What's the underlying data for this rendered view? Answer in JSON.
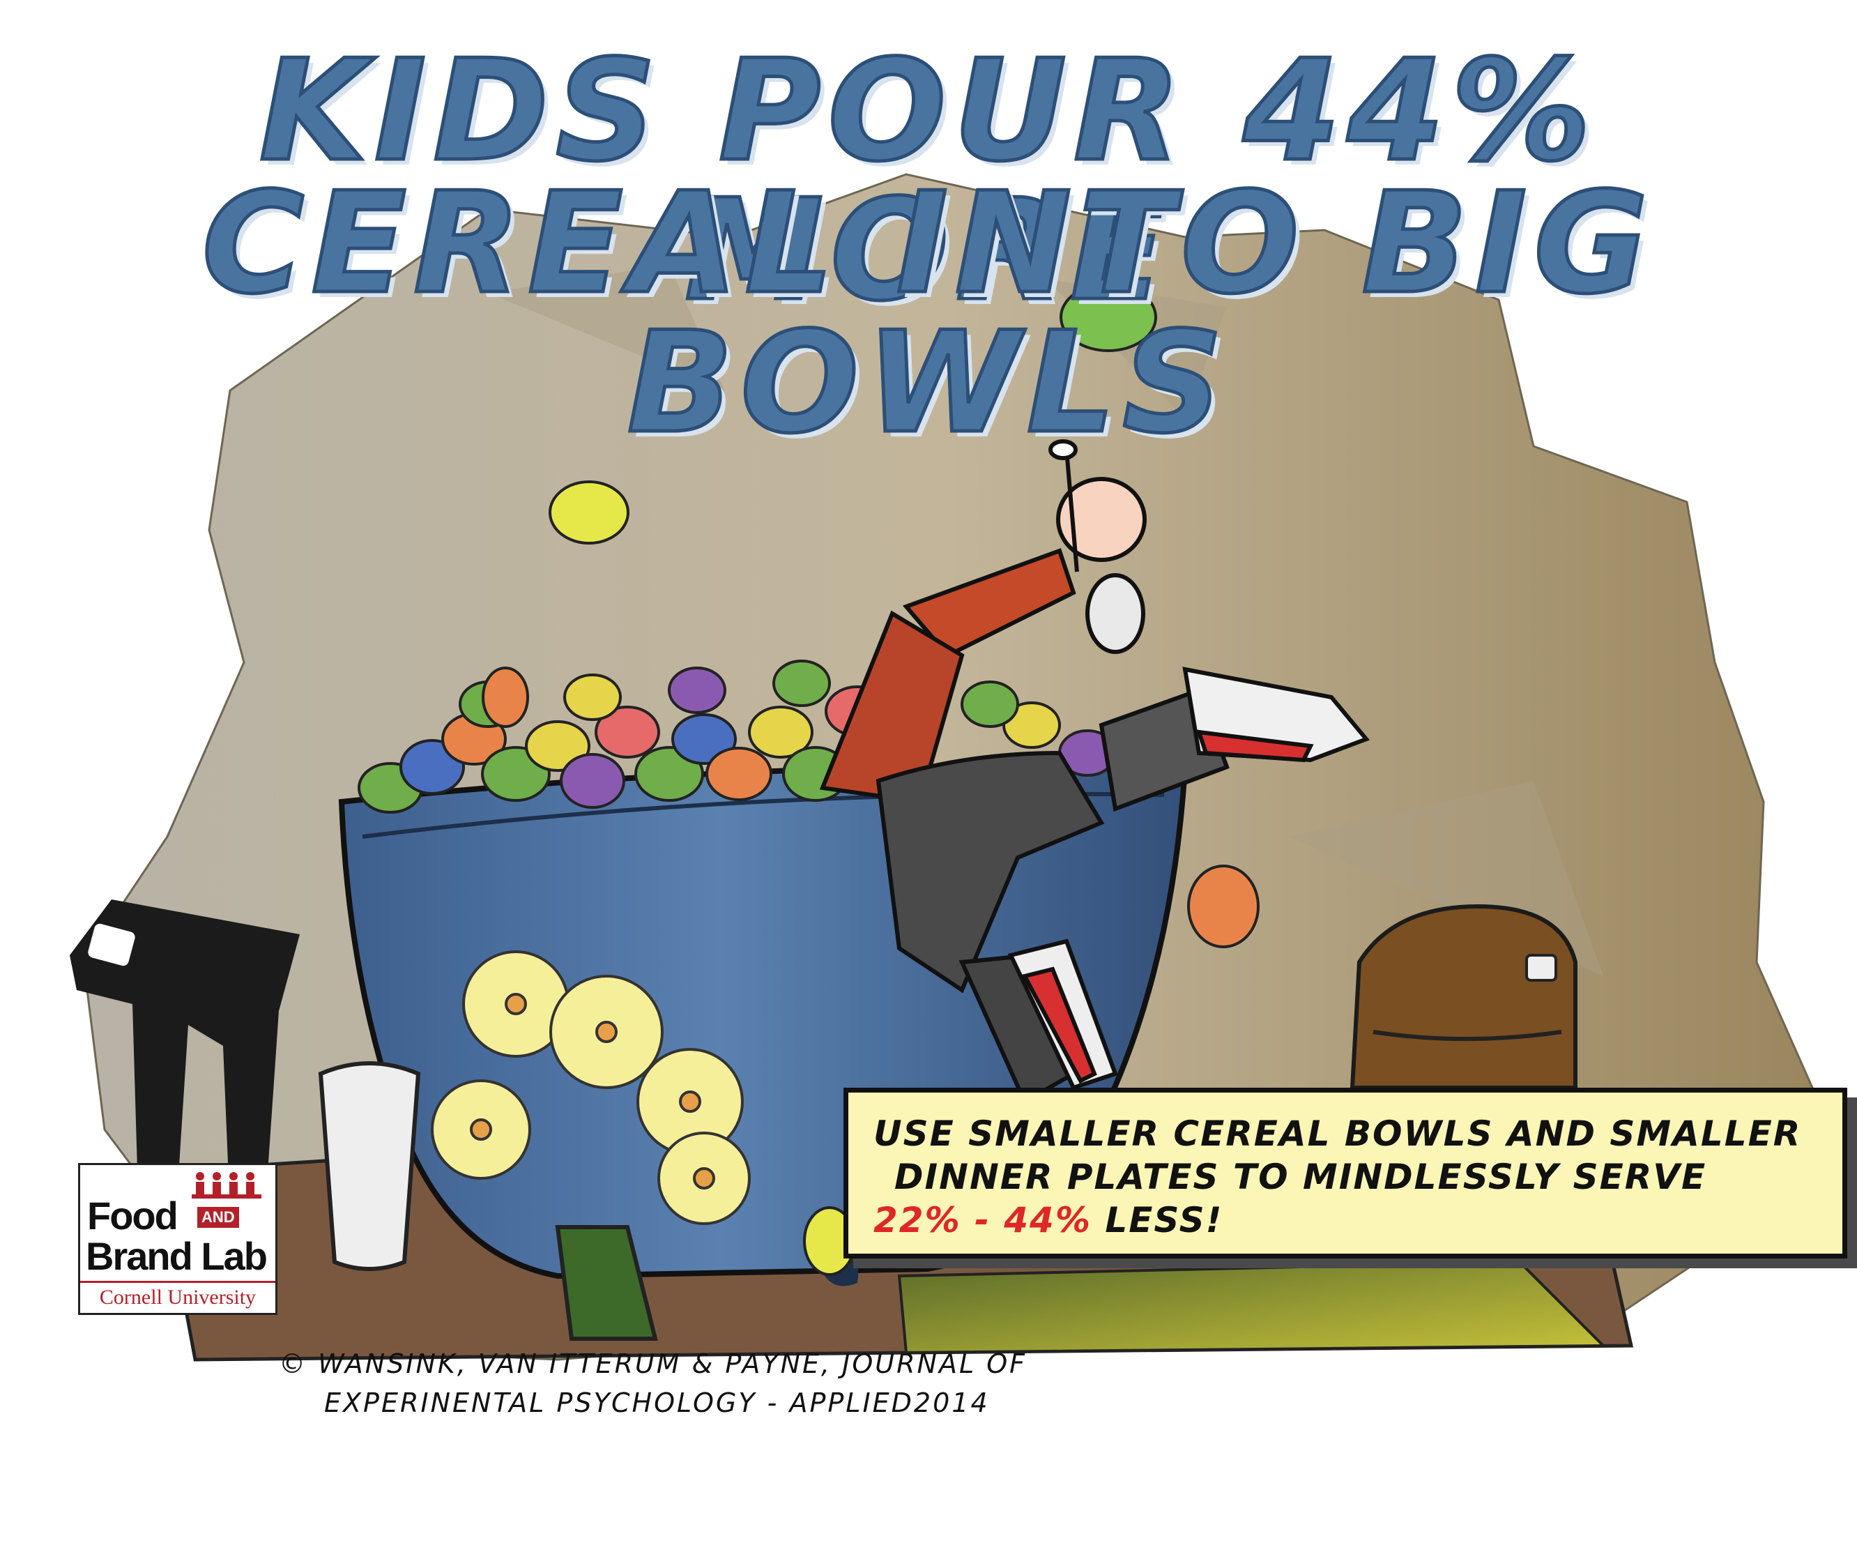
{
  "headline": {
    "line1": "KIDS POUR 44% MORE",
    "line2": "CEREAL INTO BIG BOWLS"
  },
  "tip": {
    "line1": "USE SMALLER CEREAL BOWLS AND SMALLER",
    "line2": "DINNER PLATES TO MINDLESSLY SERVE",
    "range": "22% - 44%",
    "suffix": " LESS!"
  },
  "credit": {
    "line1": "© WANSINK, VAN ITTERUM & PAYNE, JOURNAL OF",
    "line2": "EXPERINENTAL PSYCHOLOGY - APPLIED2014"
  },
  "logo": {
    "food": "Food",
    "and": "AND",
    "brand": "Brand Lab",
    "university": "Cornell University"
  },
  "colors": {
    "headline": "#4a74a0",
    "bowl": "#4a6f9e",
    "highlight_red": "#e02626",
    "tip_bg": "#fbf6b6",
    "brand_red": "#b3202a"
  }
}
